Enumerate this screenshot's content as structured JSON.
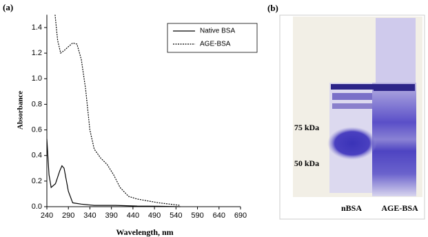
{
  "chart_data": {
    "type": "line",
    "panel_label": "(a)",
    "x_label": "Wavelength, nm",
    "y_label": "Absorbance",
    "xlim": [
      240,
      690
    ],
    "xticks": [
      240,
      290,
      340,
      390,
      440,
      490,
      540,
      590,
      640,
      690
    ],
    "ylim": [
      0,
      1.5
    ],
    "yticks": [
      {
        "value": 0,
        "label": "0.0"
      },
      0.2,
      0.4,
      0.6,
      0.8,
      {
        "value": 1,
        "label": "1.0"
      },
      1.2,
      1.4
    ],
    "legend": "upper right",
    "series": [
      {
        "name": "Native BSA",
        "color": "#000000",
        "dash": "solid",
        "x": [
          240,
          245,
          250,
          260,
          270,
          275,
          280,
          290,
          300,
          320,
          350,
          400,
          450,
          500,
          550
        ],
        "values": [
          0.53,
          0.25,
          0.15,
          0.18,
          0.28,
          0.32,
          0.3,
          0.12,
          0.03,
          0.02,
          0.01,
          0.01,
          0.005,
          0.003,
          0
        ]
      },
      {
        "name": "AGE-BSA",
        "color": "#000000",
        "dash": "dotted",
        "x": [
          259,
          265,
          272,
          280,
          290,
          300,
          310,
          320,
          330,
          340,
          350,
          365,
          380,
          395,
          410,
          430,
          450,
          500,
          550
        ],
        "values": [
          1.5,
          1.3,
          1.2,
          1.22,
          1.25,
          1.28,
          1.27,
          1.15,
          0.92,
          0.6,
          0.45,
          0.38,
          0.33,
          0.25,
          0.15,
          0.08,
          0.06,
          0.03,
          0.01
        ]
      }
    ]
  },
  "gel": {
    "panel_label": "(b)",
    "markers": [
      "75 kDa",
      "50 kDa"
    ],
    "lanes": [
      "nBSA",
      "AGE-BSA"
    ]
  }
}
